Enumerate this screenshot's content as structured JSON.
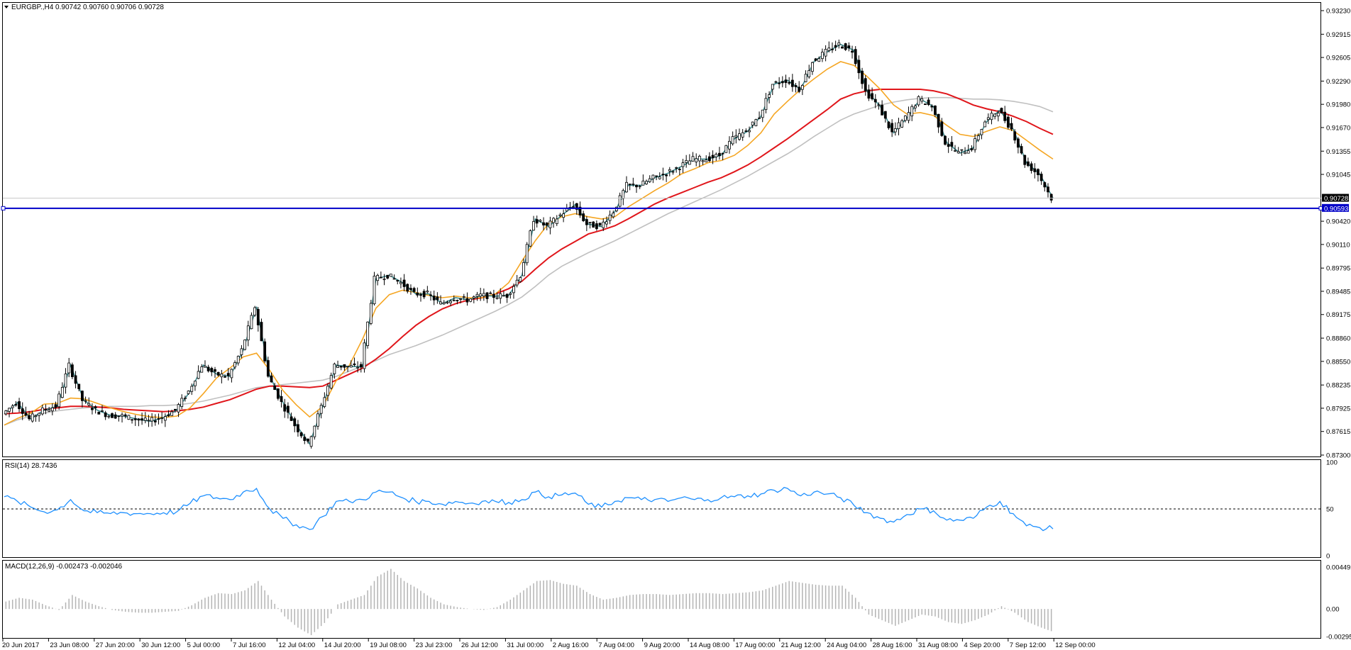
{
  "header": {
    "symbol_line": "EURGBP.,H4  0.90742 0.90760 0.90706 0.90728",
    "menu_arrow_icon": "triangle-down-icon"
  },
  "colors": {
    "candles": "#000000",
    "ma_fast": "#3d8a8e",
    "ma_mid": "#f5a623",
    "ma_slow": "#e0161b",
    "ma_long": "#c0c0c0",
    "hline": "#0000c8",
    "rsi": "#1e90ff",
    "macd": "#b4b4b4",
    "bid_line": "#c8c8c8"
  },
  "price_axis": {
    "labels": [
      "0.93230",
      "0.92915",
      "0.92605",
      "0.92290",
      "0.91980",
      "0.91670",
      "0.91355",
      "0.91045",
      "0.90728",
      "0.90593",
      "0.90420",
      "0.90110",
      "0.89795",
      "0.89485",
      "0.89175",
      "0.88860",
      "0.88550",
      "0.88235",
      "0.87925",
      "0.87615",
      "0.87300"
    ],
    "bid_tag": "0.90728",
    "hline_tag": "0.90593"
  },
  "rsi_panel": {
    "title": "RSI(14) 28.7436",
    "levels": [
      "100",
      "50",
      "0"
    ]
  },
  "macd_panel": {
    "title": "MACD(12,26,9) -0.002473 -0.002046",
    "levels": [
      "0.004492",
      "0.00",
      "-0.002951"
    ]
  },
  "time_axis": [
    "20 Jun 2017",
    "23 Jun 08:00",
    "27 Jun 20:00",
    "30 Jun 12:00",
    "5 Jul 00:00",
    "7 Jul 16:00",
    "12 Jul 04:00",
    "14 Jul 20:00",
    "19 Jul 08:00",
    "23 Jul 23:00",
    "26 Jul 12:00",
    "31 Jul 00:00",
    "2 Aug 16:00",
    "7 Aug 04:00",
    "9 Aug 20:00",
    "14 Aug 08:00",
    "17 Aug 00:00",
    "21 Aug 12:00",
    "24 Aug 04:00",
    "28 Aug 16:00",
    "31 Aug 08:00",
    "4 Sep 20:00",
    "7 Sep 12:00",
    "12 Sep 00:00"
  ],
  "chart_data": {
    "type": "line",
    "title": "EURGBP.,H4",
    "ylim": [
      0.873,
      0.9323
    ],
    "horizontal_line": 0.90593,
    "bid": 0.90728,
    "series": [
      {
        "values": [
          0.8785,
          0.88,
          0.8778,
          0.879,
          0.8795,
          0.885,
          0.8803,
          0.879,
          0.8783,
          0.8782,
          0.8778,
          0.8775,
          0.878,
          0.879,
          0.8815,
          0.885,
          0.8838,
          0.8835,
          0.887,
          0.8928,
          0.8835,
          0.88,
          0.877,
          0.8745,
          0.8795,
          0.885,
          0.8848,
          0.8848,
          0.8965,
          0.897,
          0.896,
          0.8945,
          0.8945,
          0.8932,
          0.894,
          0.8937,
          0.8943,
          0.8942,
          0.8943,
          0.897,
          0.9045,
          0.9035,
          0.905,
          0.9064,
          0.9038,
          0.9035,
          0.9055,
          0.909,
          0.909,
          0.91,
          0.9106,
          0.9115,
          0.9125,
          0.9125,
          0.913,
          0.9152,
          0.9162,
          0.9182,
          0.9225,
          0.923,
          0.9218,
          0.9255,
          0.9268,
          0.9278,
          0.927,
          0.9215,
          0.9195,
          0.916,
          0.918,
          0.9205,
          0.9195,
          0.9147,
          0.9133,
          0.914,
          0.9175,
          0.919,
          0.9165,
          0.912,
          0.9105,
          0.90728
        ]
      },
      {
        "values": [
          0.877,
          0.8779,
          0.8786,
          0.8798,
          0.8799,
          0.8806,
          0.8805,
          0.8799,
          0.8793,
          0.8788,
          0.8784,
          0.8781,
          0.878,
          0.8782,
          0.8793,
          0.8812,
          0.8833,
          0.8846,
          0.8861,
          0.8866,
          0.8843,
          0.8816,
          0.8797,
          0.8781,
          0.8795,
          0.8829,
          0.885,
          0.8885,
          0.8926,
          0.8944,
          0.895,
          0.8947,
          0.8943,
          0.894,
          0.8942,
          0.894,
          0.894,
          0.8945,
          0.896,
          0.8989,
          0.9016,
          0.9039,
          0.9048,
          0.9052,
          0.9048,
          0.9045,
          0.9048,
          0.9061,
          0.9072,
          0.9083,
          0.9093,
          0.9105,
          0.9112,
          0.912,
          0.9123,
          0.913,
          0.9143,
          0.916,
          0.9185,
          0.9202,
          0.9218,
          0.9232,
          0.9245,
          0.9255,
          0.925,
          0.9235,
          0.9218,
          0.9197,
          0.9185,
          0.9187,
          0.9183,
          0.917,
          0.9158,
          0.9155,
          0.9162,
          0.9168,
          0.9163,
          0.915,
          0.9137,
          0.9125
        ]
      },
      {
        "values": [
          0.8785,
          0.8786,
          0.8788,
          0.8791,
          0.8793,
          0.8795,
          0.8795,
          0.8794,
          0.8793,
          0.8791,
          0.879,
          0.8789,
          0.8788,
          0.8789,
          0.8791,
          0.8794,
          0.8799,
          0.8804,
          0.8811,
          0.8818,
          0.8822,
          0.8822,
          0.8821,
          0.882,
          0.8822,
          0.883,
          0.8838,
          0.8846,
          0.8858,
          0.8872,
          0.8888,
          0.8903,
          0.8915,
          0.8925,
          0.8932,
          0.8937,
          0.894,
          0.8945,
          0.8952,
          0.8962,
          0.8978,
          0.8993,
          0.9005,
          0.9015,
          0.9025,
          0.903,
          0.9036,
          0.9045,
          0.9055,
          0.9065,
          0.9073,
          0.908,
          0.9087,
          0.9094,
          0.91,
          0.9108,
          0.9117,
          0.9128,
          0.914,
          0.9152,
          0.9165,
          0.9178,
          0.9191,
          0.9205,
          0.9212,
          0.9216,
          0.9218,
          0.9218,
          0.9218,
          0.9218,
          0.9216,
          0.9212,
          0.9205,
          0.9197,
          0.9192,
          0.9188,
          0.9182,
          0.9175,
          0.9166,
          0.9158
        ]
      },
      {
        "values": [
          0.877,
          0.8777,
          0.8782,
          0.8786,
          0.8789,
          0.8791,
          0.8793,
          0.8794,
          0.8795,
          0.8795,
          0.8795,
          0.8796,
          0.8796,
          0.8797,
          0.8799,
          0.8802,
          0.8806,
          0.881,
          0.8815,
          0.882,
          0.8822,
          0.8824,
          0.8826,
          0.8828,
          0.883,
          0.8835,
          0.8842,
          0.8849,
          0.8856,
          0.8864,
          0.887,
          0.8876,
          0.8883,
          0.889,
          0.8898,
          0.8906,
          0.8914,
          0.8922,
          0.8931,
          0.8941,
          0.8955,
          0.897,
          0.8982,
          0.8991,
          0.9,
          0.9008,
          0.9016,
          0.9025,
          0.9034,
          0.9043,
          0.9052,
          0.906,
          0.9068,
          0.9076,
          0.9084,
          0.9093,
          0.9102,
          0.9112,
          0.9122,
          0.9132,
          0.9143,
          0.9155,
          0.9166,
          0.9177,
          0.9185,
          0.9191,
          0.9197,
          0.9201,
          0.9204,
          0.9206,
          0.9207,
          0.9207,
          0.9206,
          0.9205,
          0.9205,
          0.9204,
          0.9202,
          0.9199,
          0.9195,
          0.9188
        ]
      }
    ],
    "rsi": [
      63,
      58,
      52,
      47,
      49,
      60,
      48,
      46,
      45,
      46,
      45,
      45,
      46,
      47,
      56,
      64,
      62,
      60,
      68,
      72,
      50,
      40,
      33,
      28,
      42,
      58,
      58,
      60,
      68,
      68,
      62,
      58,
      58,
      55,
      58,
      56,
      58,
      58,
      57,
      60,
      68,
      63,
      65,
      67,
      55,
      52,
      58,
      62,
      60,
      60,
      58,
      62,
      60,
      60,
      62,
      63,
      64,
      66,
      70,
      72,
      64,
      68,
      66,
      62,
      54,
      46,
      40,
      36,
      44,
      50,
      48,
      38,
      38,
      40,
      52,
      58,
      45,
      32,
      30,
      28.7436
    ],
    "macd": [
      0.0008,
      0.0012,
      0.001,
      0.0004,
      -0.0001,
      0.0015,
      0.0008,
      0.0003,
      -0.0001,
      -0.0003,
      -0.0004,
      -0.0004,
      -0.0003,
      -0.0002,
      0.0004,
      0.0012,
      0.0017,
      0.0016,
      0.002,
      0.003,
      0.001,
      -0.0008,
      -0.002,
      -0.0028,
      -0.0015,
      0.0005,
      0.001,
      0.0015,
      0.0035,
      0.0043,
      0.003,
      0.0022,
      0.0012,
      0.0005,
      0.0002,
      0.0,
      -0.0001,
      0.0002,
      0.001,
      0.002,
      0.003,
      0.0031,
      0.0027,
      0.0025,
      0.0016,
      0.001,
      0.0012,
      0.0015,
      0.0016,
      0.0016,
      0.0015,
      0.0016,
      0.0017,
      0.0017,
      0.0016,
      0.0017,
      0.0018,
      0.002,
      0.0025,
      0.003,
      0.0028,
      0.0026,
      0.0025,
      0.0025,
      0.0012,
      -0.0006,
      -0.0012,
      -0.0018,
      -0.0012,
      -0.0006,
      -0.0008,
      -0.0014,
      -0.0016,
      -0.0012,
      -0.0006,
      0.0003,
      -0.0004,
      -0.0014,
      -0.002,
      -0.0025
    ]
  }
}
